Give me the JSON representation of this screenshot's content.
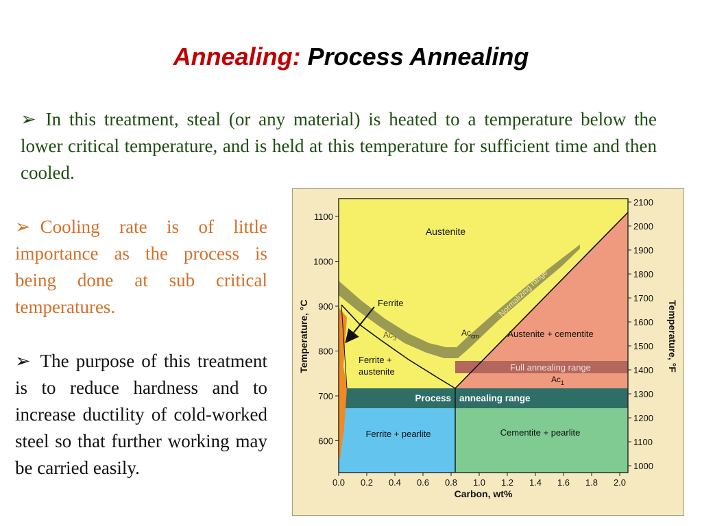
{
  "title": {
    "accent": "Annealing:",
    "rest": " Process Annealing"
  },
  "bullets": {
    "symbol": "➢",
    "p1": "In this treatment, steal (or any material) is heated to a temperature below the lower critical temperature, and is held at this temperature for sufficient time and then cooled.",
    "p2": "Cooling rate is of little importance as the process is being done at sub critical temperatures.",
    "p3": "The purpose of this treatment is to reduce hardness and to increase ductility of cold-worked steel so that further working may be carried easily."
  },
  "diagram": {
    "xaxis_label": "Carbon, wt%",
    "yaxis_left_label": "Temperature, °C",
    "yaxis_right_label": "Temperature, °F",
    "x_ticks": [
      "0.0",
      "0.2",
      "0.4",
      "0.6",
      "0.8",
      "1.0",
      "1.2",
      "1.4",
      "1.6",
      "1.8",
      "2.0"
    ],
    "y_left_ticks": [
      "1100",
      "1000",
      "900",
      "800",
      "700",
      "600"
    ],
    "y_right_ticks": [
      "2100",
      "2000",
      "1900",
      "1800",
      "1700",
      "1600",
      "1500",
      "1400",
      "1300",
      "1200",
      "1100",
      "1000"
    ],
    "regions": {
      "austenite": "Austenite",
      "ferrite": "Ferrite",
      "ferrite_austenite_1": "Ferrite +",
      "ferrite_austenite_2": "austenite",
      "austenite_cementite": "Austenite + cementite",
      "ferrite_pearlite": "Ferrite + pearlite",
      "cementite_pearlite": "Cementite + pearlite"
    },
    "bands": {
      "normalizing": "Normalizing range",
      "full_annealing": "Full annealing range",
      "process_left": "Process",
      "process_right": "annealing range"
    },
    "lines": {
      "ac3_base": "Ac",
      "ac3_sub": "3",
      "acm_base": "Ac",
      "acm_sub": "cm",
      "ac1_base": "Ac",
      "ac1_sub": "1"
    },
    "colors": {
      "panel": "#f6e9bf",
      "austenite": "#f6f068",
      "normalizing": "#9a9a52",
      "austenite_cementite": "#ef9a7e",
      "full_annealing": "#b4675d",
      "process": "#2e6e66",
      "ferrite_pearlite": "#63c5ee",
      "cementite_pearlite": "#7fcb92",
      "ferrite": "#f08a24"
    }
  }
}
